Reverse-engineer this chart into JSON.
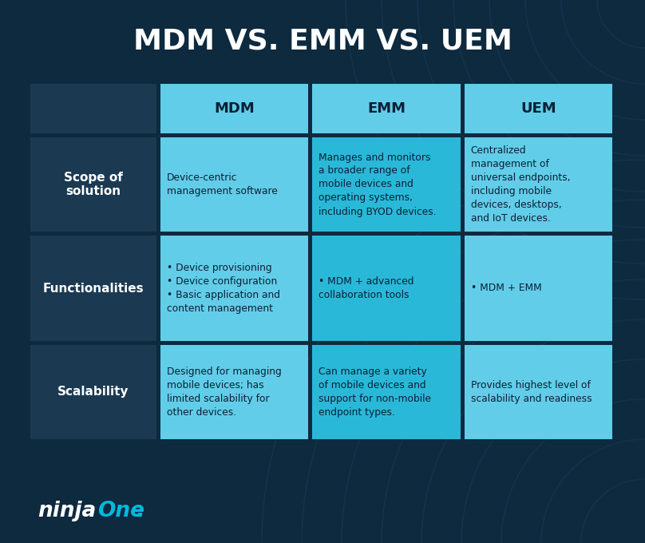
{
  "title": "MDM VS. EMM VS. UEM",
  "title_color": "#ffffff",
  "bg_color": "#0e2a3f",
  "header_bg": "#62cde8",
  "header_text_color": "#0a2035",
  "row_label_bg": "#1b3a52",
  "row_label_text_color": "#ffffff",
  "cell_bg_light": "#62cde8",
  "cell_bg_medium": "#2ab8d8",
  "cell_text_color": "#0a2035",
  "headers": [
    "MDM",
    "EMM",
    "UEM"
  ],
  "row_labels": [
    "Scope of\nsolution",
    "Functionalities",
    "Scalability"
  ],
  "cells": [
    [
      "Device-centric\nmanagement software",
      "Manages and monitors\na broader range of\nmobile devices and\noperating systems,\nincluding BYOD devices.",
      "Centralized\nmanagement of\nuniversal endpoints,\nincluding mobile\ndevices, desktops,\nand IoT devices."
    ],
    [
      "• Device provisioning\n• Device configuration\n• Basic application and\ncontent management",
      "• MDM + advanced\ncollaboration tools",
      "• MDM + EMM"
    ],
    [
      "Designed for managing\nmobile devices; has\nlimited scalability for\nother devices.",
      "Can manage a variety\nof mobile devices and\nsupport for non-mobile\nendpoint types.",
      "Provides highest level of\nscalability and readiness"
    ]
  ],
  "cell_colors": [
    [
      "light",
      "medium",
      "light"
    ],
    [
      "light",
      "medium",
      "light"
    ],
    [
      "light",
      "medium",
      "light"
    ]
  ],
  "arc_color": "#1a4a66",
  "arc_alpha": 0.35
}
